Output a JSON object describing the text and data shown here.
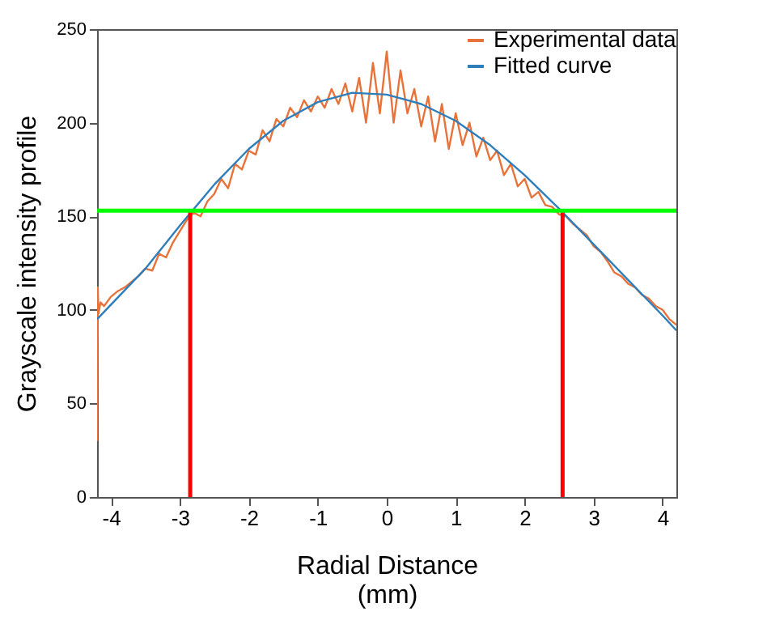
{
  "chart_data": {
    "type": "line",
    "xlabel": "Radial Distance\n(mm)",
    "ylabel": "Grayscale intensity profile",
    "xlim": [
      -4.2,
      4.2
    ],
    "ylim": [
      0,
      250
    ],
    "xticks": [
      -4,
      -3,
      -2,
      -1,
      0,
      1,
      2,
      3,
      4
    ],
    "yticks": [
      0,
      50,
      100,
      150,
      200,
      250
    ],
    "grid": false,
    "legend": "top right",
    "series": [
      {
        "name": "Experimental data",
        "color": "#e8733a",
        "x": [
          -4.2,
          -4.19,
          -4.18,
          -4.15,
          -4.1,
          -4.0,
          -3.9,
          -3.8,
          -3.7,
          -3.6,
          -3.5,
          -3.4,
          -3.3,
          -3.2,
          -3.1,
          -3.0,
          -2.9,
          -2.8,
          -2.7,
          -2.6,
          -2.5,
          -2.4,
          -2.3,
          -2.2,
          -2.1,
          -2.0,
          -1.9,
          -1.8,
          -1.7,
          -1.6,
          -1.5,
          -1.4,
          -1.3,
          -1.2,
          -1.1,
          -1.0,
          -0.9,
          -0.8,
          -0.7,
          -0.6,
          -0.5,
          -0.4,
          -0.3,
          -0.2,
          -0.1,
          0.0,
          0.1,
          0.2,
          0.3,
          0.4,
          0.5,
          0.6,
          0.7,
          0.8,
          0.9,
          1.0,
          1.1,
          1.2,
          1.3,
          1.4,
          1.5,
          1.6,
          1.7,
          1.8,
          1.9,
          2.0,
          2.1,
          2.2,
          2.3,
          2.4,
          2.5,
          2.6,
          2.7,
          2.8,
          2.9,
          3.0,
          3.1,
          3.2,
          3.3,
          3.4,
          3.5,
          3.6,
          3.7,
          3.8,
          3.9,
          4.0,
          4.1,
          4.2
        ],
        "values": [
          30,
          112,
          98,
          104,
          102,
          107,
          110,
          112,
          115,
          118,
          122,
          121,
          130,
          128,
          136,
          142,
          148,
          152,
          150,
          158,
          162,
          170,
          165,
          178,
          175,
          185,
          183,
          196,
          190,
          202,
          198,
          208,
          203,
          212,
          206,
          214,
          208,
          218,
          210,
          221,
          206,
          224,
          200,
          232,
          205,
          238,
          200,
          228,
          205,
          218,
          198,
          214,
          190,
          210,
          186,
          205,
          188,
          200,
          182,
          192,
          180,
          185,
          172,
          178,
          166,
          170,
          160,
          163,
          156,
          155,
          151,
          150,
          146,
          143,
          140,
          134,
          131,
          126,
          120,
          118,
          114,
          112,
          108,
          106,
          102,
          100,
          95,
          92
        ]
      },
      {
        "name": "Fitted curve",
        "color": "#2f7ebc",
        "x": [
          -4.2,
          -3.5,
          -3.0,
          -2.5,
          -2.0,
          -1.5,
          -1.0,
          -0.5,
          0.0,
          0.5,
          1.0,
          1.5,
          2.0,
          2.5,
          3.0,
          3.5,
          4.0,
          4.2
        ],
        "values": [
          95,
          122,
          145,
          167,
          186,
          201,
          211,
          216,
          215,
          210,
          201,
          188,
          172,
          154,
          135,
          116,
          97,
          89
        ]
      },
      {
        "type": "line",
        "color": "#ff0000",
        "x": [
          -2.85,
          -2.85
        ],
        "values": [
          0,
          153
        ]
      },
      {
        "type": "line",
        "color": "#ff0000",
        "x": [
          2.55,
          2.55
        ],
        "values": [
          0,
          153
        ]
      }
    ],
    "ref_lines": [
      {
        "axis": "y",
        "value": 153,
        "color": "#00ff00"
      }
    ]
  }
}
